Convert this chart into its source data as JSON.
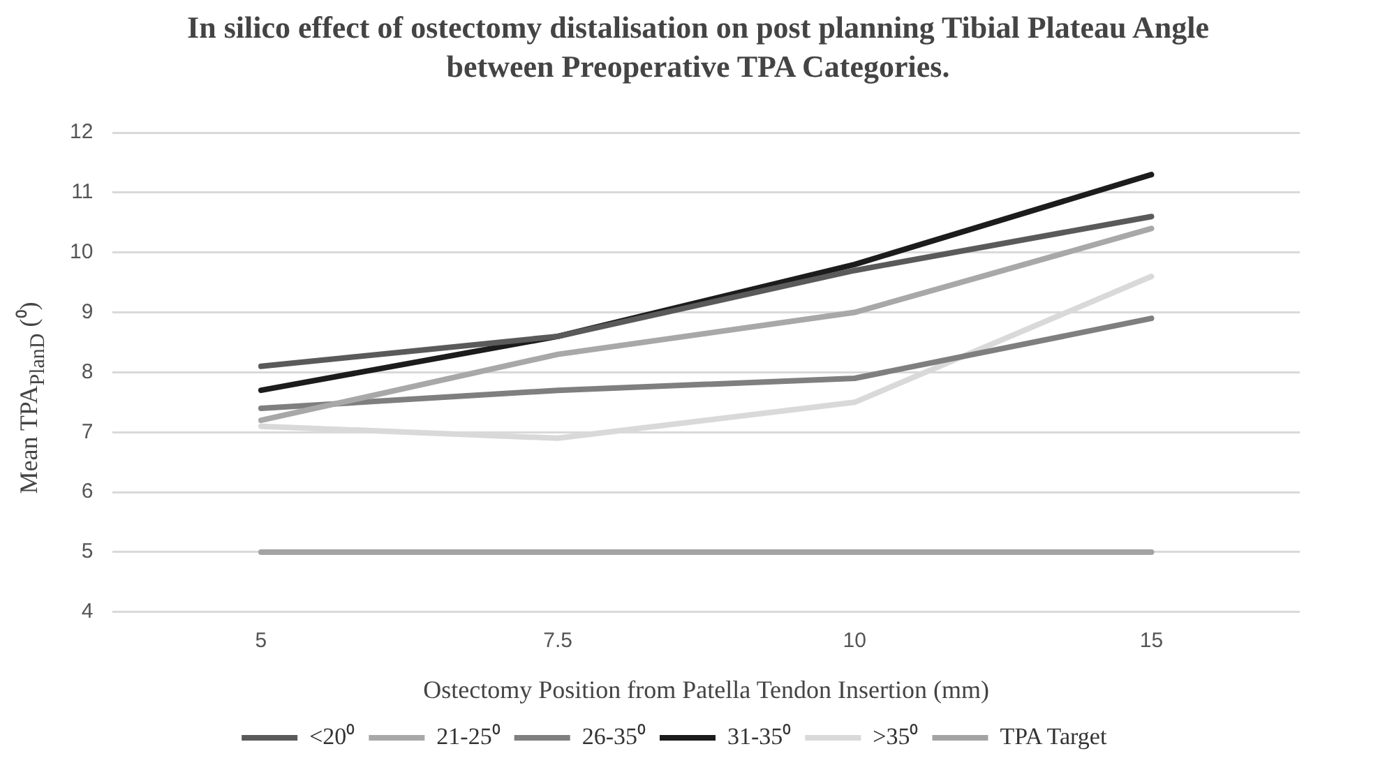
{
  "chart_data": {
    "type": "line",
    "title": "In silico effect of ostectomy distalisation on post planning Tibial Plateau Angle between  Preoperative TPA Categories.",
    "xlabel": "Ostectomy Position from Patella Tendon Insertion (mm)",
    "ylabel": "Mean TPA$_{PlanD}$ (⁰)",
    "categories": [
      "5",
      "7.5",
      "10",
      "15"
    ],
    "series": [
      {
        "name": "<20⁰",
        "color": "#5a5a5a",
        "values": [
          8.1,
          8.6,
          9.7,
          10.6
        ]
      },
      {
        "name": "21-25⁰",
        "color": "#a8a8a8",
        "values": [
          7.2,
          8.3,
          9.0,
          10.4
        ]
      },
      {
        "name": "26-35⁰",
        "color": "#7f7f7f",
        "values": [
          7.4,
          7.7,
          7.9,
          8.9
        ]
      },
      {
        "name": "31-35⁰",
        "color": "#1c1c1c",
        "values": [
          7.7,
          8.6,
          9.8,
          11.3
        ]
      },
      {
        "name": ">35⁰",
        "color": "#d9d9d9",
        "values": [
          7.1,
          6.9,
          7.5,
          9.6
        ]
      },
      {
        "name": "TPA Target",
        "color": "#a3a3a3",
        "values": [
          5,
          5,
          5,
          5
        ]
      }
    ],
    "ylim": [
      4,
      12
    ],
    "yticks": [
      4,
      5,
      6,
      7,
      8,
      9,
      10,
      11,
      12
    ],
    "grid": "y",
    "legend": "bottom",
    "marker": "none",
    "line_style": "solid"
  }
}
